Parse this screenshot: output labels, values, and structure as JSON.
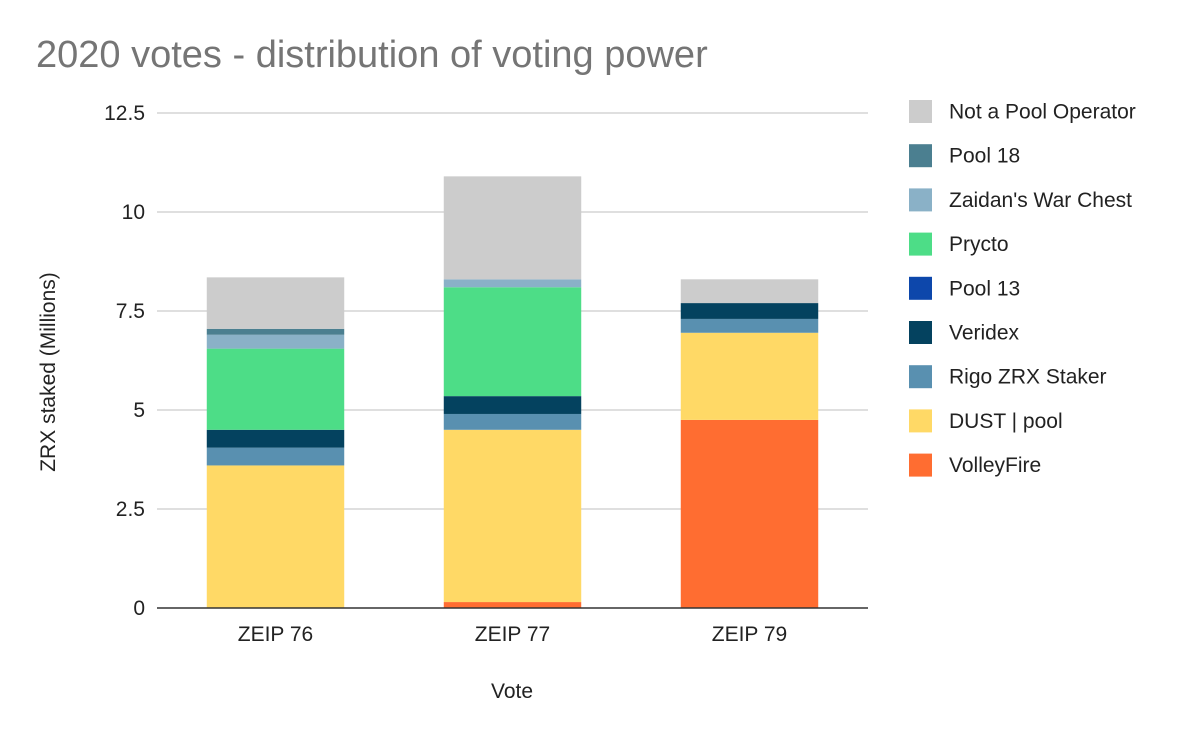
{
  "chart_data": {
    "type": "bar",
    "stacked": true,
    "title": "2020 votes - distribution of voting power",
    "xlabel": "Vote",
    "ylabel": "ZRX staked (Millions)",
    "ylim": [
      0,
      12.5
    ],
    "yticks": [
      "0",
      "2.5",
      "5",
      "7.5",
      "10",
      "12.5"
    ],
    "grid": true,
    "legend_position": "right",
    "categories": [
      "ZEIP 76",
      "ZEIP 77",
      "ZEIP 79"
    ],
    "series": [
      {
        "name": "VolleyFire",
        "color": "#ff6d31",
        "values": [
          0,
          0.15,
          4.75
        ]
      },
      {
        "name": "DUST | pool",
        "color": "#ffd966",
        "values": [
          3.6,
          4.35,
          2.2
        ]
      },
      {
        "name": "Rigo ZRX Staker",
        "color": "#5990b0",
        "values": [
          0.45,
          0.4,
          0.35
        ]
      },
      {
        "name": "Veridex",
        "color": "#04425f",
        "values": [
          0.45,
          0.45,
          0.4
        ]
      },
      {
        "name": "Pool 13",
        "color": "#0d47ab",
        "values": [
          0,
          0,
          0
        ]
      },
      {
        "name": "Prycto",
        "color": "#4ddd87",
        "values": [
          2.05,
          2.75,
          0
        ]
      },
      {
        "name": "Zaidan's War Chest",
        "color": "#8ab1c7",
        "values": [
          0.35,
          0.2,
          0
        ]
      },
      {
        "name": "Pool 18",
        "color": "#4b7f90",
        "values": [
          0.15,
          0,
          0
        ]
      },
      {
        "name": "Not a Pool Operator",
        "color": "#cccccc",
        "values": [
          1.3,
          2.6,
          0.6
        ]
      }
    ]
  }
}
